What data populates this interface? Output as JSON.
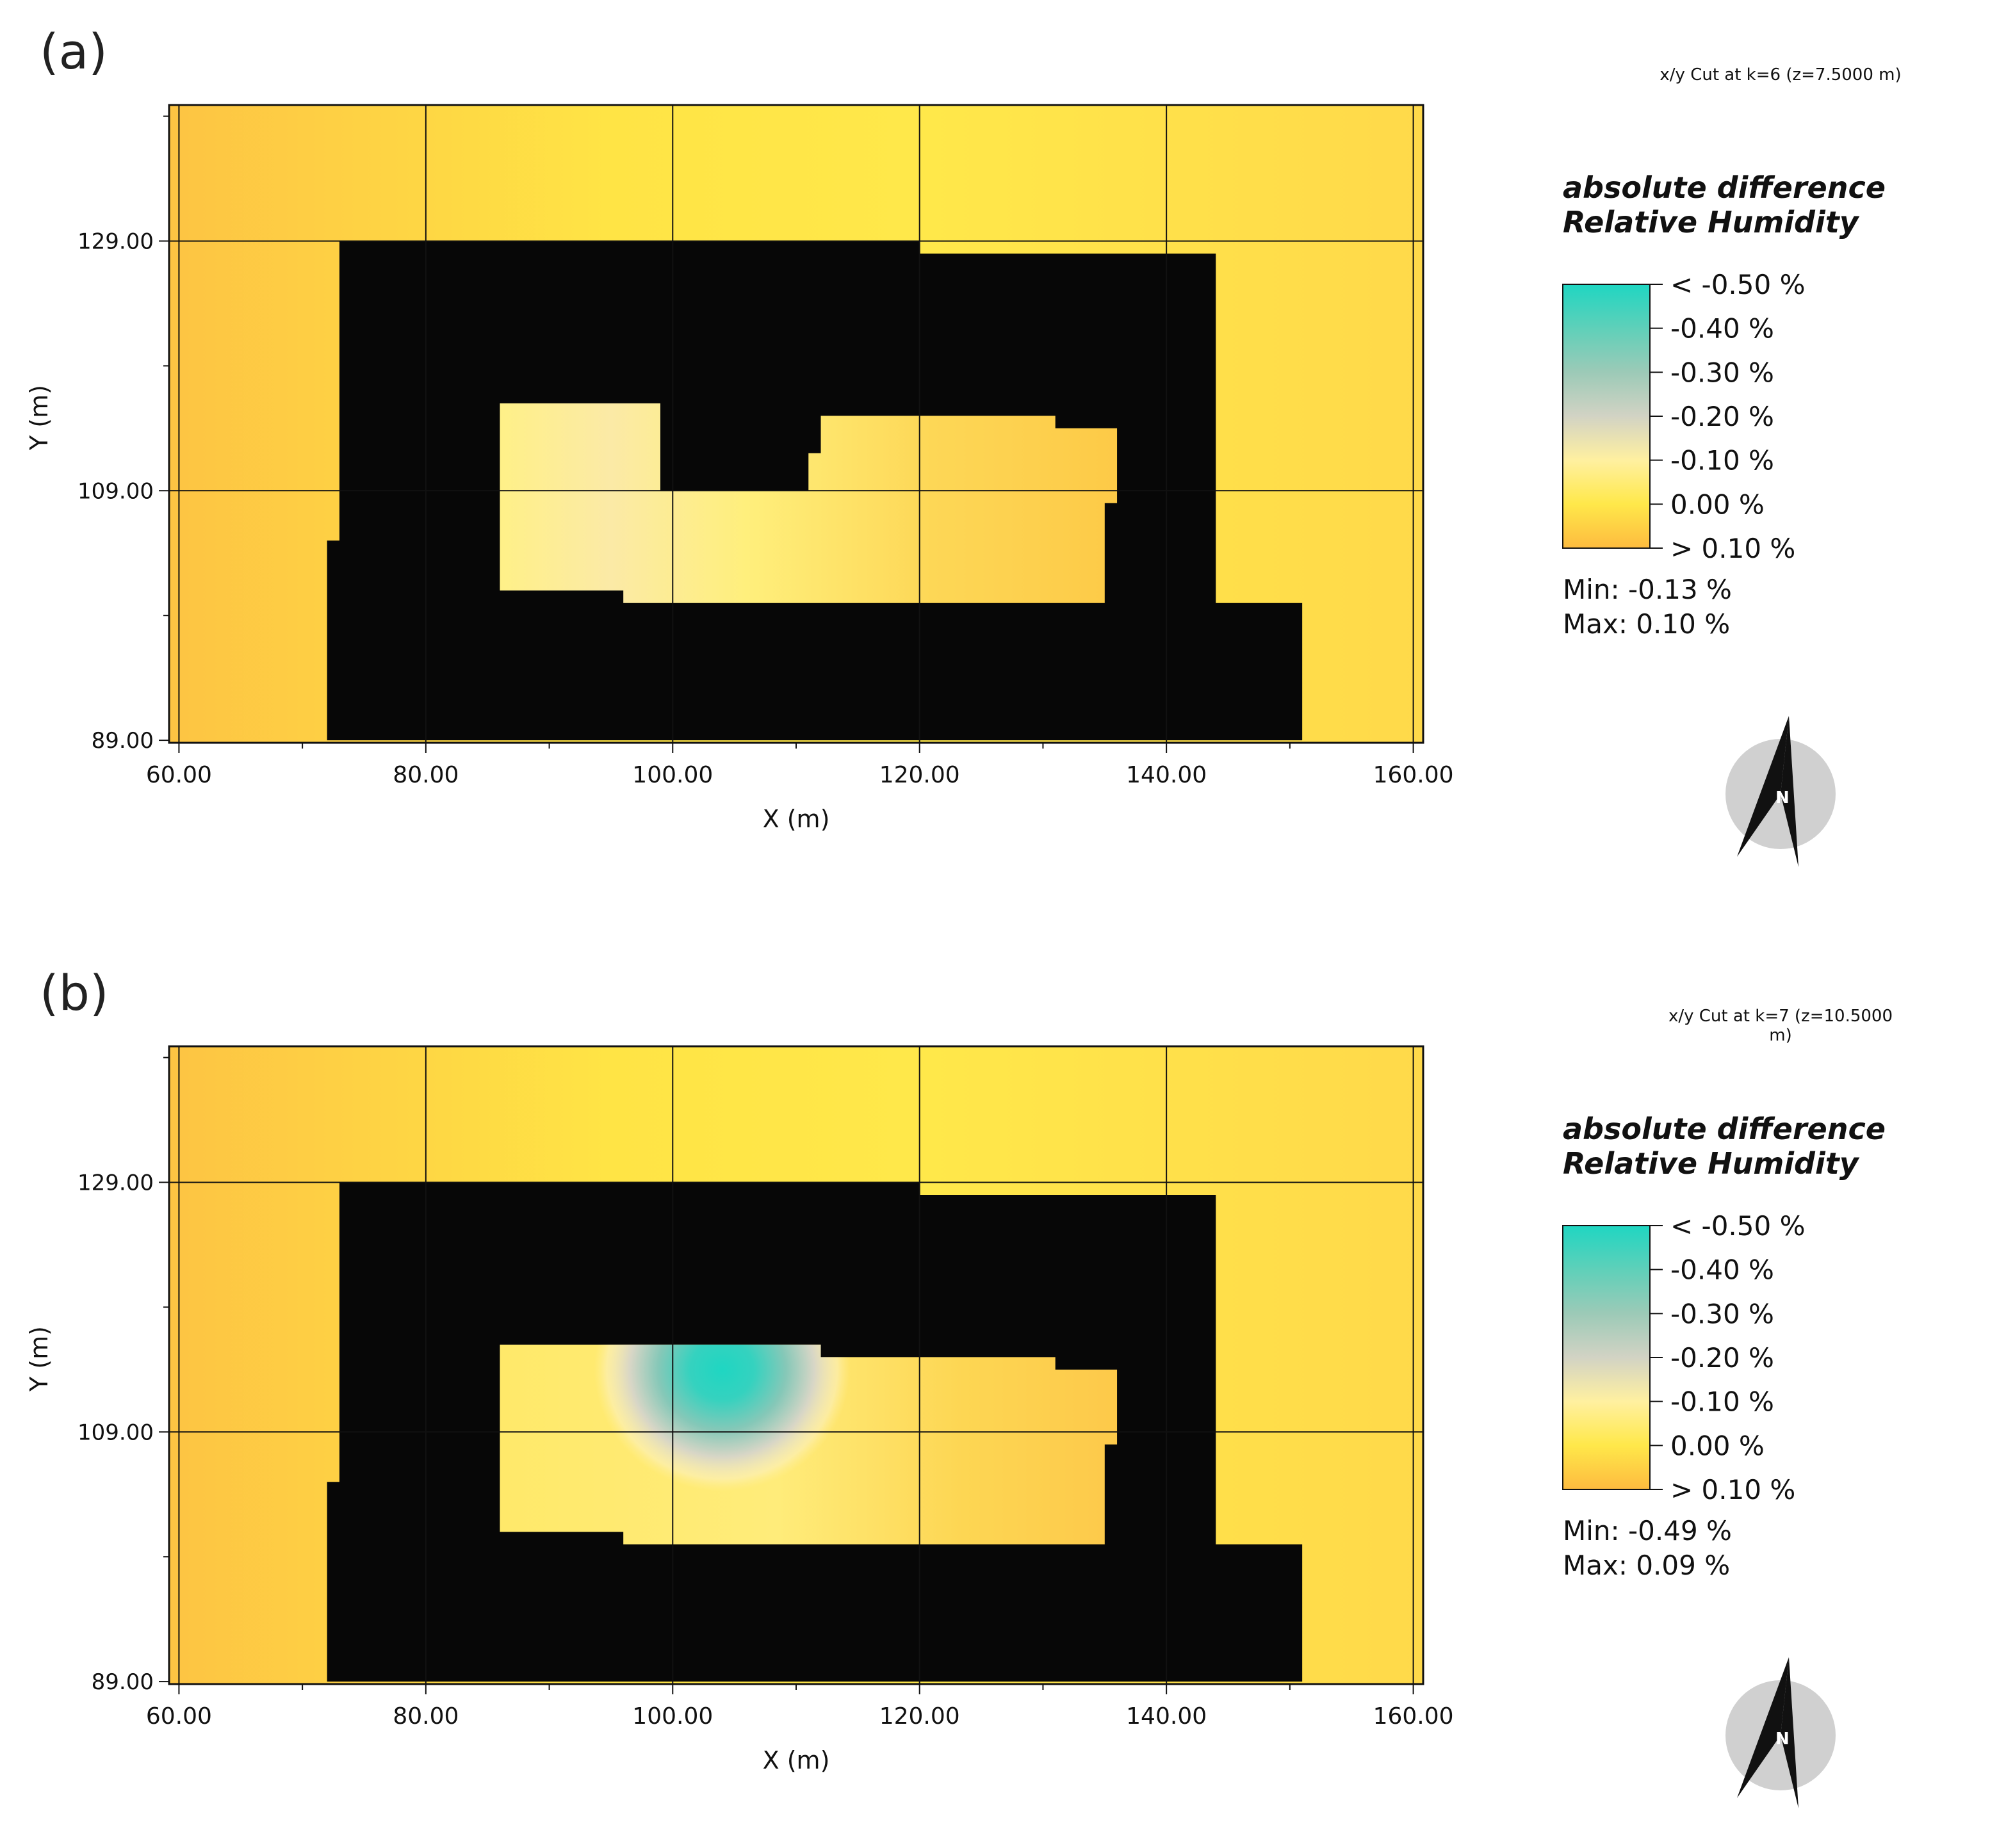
{
  "panels": [
    {
      "label": "(a)",
      "cut_label": "x/y Cut at k=6 (z=7.5000 m)",
      "legend_title": "absolute difference Relative Humidity",
      "min_text": "Min: -0.13 %",
      "max_text": "Max: 0.10 %"
    },
    {
      "label": "(b)",
      "cut_label": "x/y Cut at k=7 (z=10.5000 m)",
      "legend_title": "absolute difference Relative Humidity",
      "min_text": "Min: -0.49 %",
      "max_text": "Max: 0.09 %"
    }
  ],
  "north_label": "N",
  "chart_data": [
    {
      "type": "heatmap",
      "title": "x/y Cut at k=6 (z=7.5000 m)",
      "xlabel": "X (m)",
      "ylabel": "Y (m)",
      "xlim": [
        59.2,
        160.8
      ],
      "ylim": [
        88.8,
        139.9
      ],
      "xticks": [
        60,
        80,
        100,
        120,
        140,
        160
      ],
      "xtick_labels": [
        "60.00",
        "80.00",
        "100.00",
        "120.00",
        "140.00",
        "160.00"
      ],
      "yticks": [
        89,
        109,
        129
      ],
      "ytick_labels": [
        "89.00",
        "109.00",
        "129.00"
      ],
      "colorbar": {
        "labels": [
          "< -0.50 %",
          "-0.40  %",
          "-0.30  %",
          "-0.20  %",
          "-0.10  %",
          "0.00  %",
          "> 0.10 %"
        ],
        "colors": [
          "#1fd6c2",
          "#5fd0b9",
          "#9ccab7",
          "#d2d3c4",
          "#fff0a0",
          "#ffe84a",
          "#fdbb3f"
        ]
      },
      "value_range": [
        -0.13,
        0.1
      ],
      "building_polygon": [
        [
          72,
          89
        ],
        [
          72,
          105
        ],
        [
          73,
          105
        ],
        [
          73,
          129
        ],
        [
          120,
          129
        ],
        [
          120,
          128
        ],
        [
          144,
          128
        ],
        [
          144,
          100
        ],
        [
          151,
          100
        ],
        [
          151,
          89
        ]
      ],
      "courtyard_polygon": [
        [
          86,
          101
        ],
        [
          86,
          116
        ],
        [
          99,
          116
        ],
        [
          99,
          109
        ],
        [
          111,
          109
        ],
        [
          111,
          112
        ],
        [
          112,
          112
        ],
        [
          112,
          115
        ],
        [
          131,
          115
        ],
        [
          131,
          114
        ],
        [
          136,
          114
        ],
        [
          136,
          108
        ],
        [
          135,
          108
        ],
        [
          135,
          100
        ],
        [
          96,
          100
        ],
        [
          96,
          101
        ]
      ],
      "hotspot": null
    },
    {
      "type": "heatmap",
      "title": "x/y Cut at k=7 (z=10.5000 m)",
      "xlabel": "X (m)",
      "ylabel": "Y (m)",
      "xlim": [
        59.2,
        160.8
      ],
      "ylim": [
        88.8,
        139.9
      ],
      "xticks": [
        60,
        80,
        100,
        120,
        140,
        160
      ],
      "xtick_labels": [
        "60.00",
        "80.00",
        "100.00",
        "120.00",
        "140.00",
        "160.00"
      ],
      "yticks": [
        89,
        109,
        129
      ],
      "ytick_labels": [
        "89.00",
        "109.00",
        "129.00"
      ],
      "colorbar": {
        "labels": [
          "< -0.50 %",
          "-0.40  %",
          "-0.30  %",
          "-0.20  %",
          "-0.10  %",
          "0.00  %",
          "> 0.10 %"
        ],
        "colors": [
          "#1fd6c2",
          "#5fd0b9",
          "#9ccab7",
          "#d2d3c4",
          "#fff0a0",
          "#ffe84a",
          "#fdbb3f"
        ]
      },
      "value_range": [
        -0.49,
        0.09
      ],
      "building_polygon": [
        [
          72,
          89
        ],
        [
          72,
          105
        ],
        [
          73,
          105
        ],
        [
          73,
          129
        ],
        [
          120,
          129
        ],
        [
          120,
          128
        ],
        [
          144,
          128
        ],
        [
          144,
          100
        ],
        [
          151,
          100
        ],
        [
          151,
          89
        ]
      ],
      "courtyard_polygon": [
        [
          86,
          101
        ],
        [
          86,
          116
        ],
        [
          112,
          116
        ],
        [
          112,
          115
        ],
        [
          131,
          115
        ],
        [
          131,
          114
        ],
        [
          136,
          114
        ],
        [
          136,
          108
        ],
        [
          135,
          108
        ],
        [
          135,
          100
        ],
        [
          96,
          100
        ],
        [
          96,
          101
        ]
      ],
      "hotspot": {
        "x": 104,
        "y": 114,
        "value": -0.49
      }
    }
  ]
}
